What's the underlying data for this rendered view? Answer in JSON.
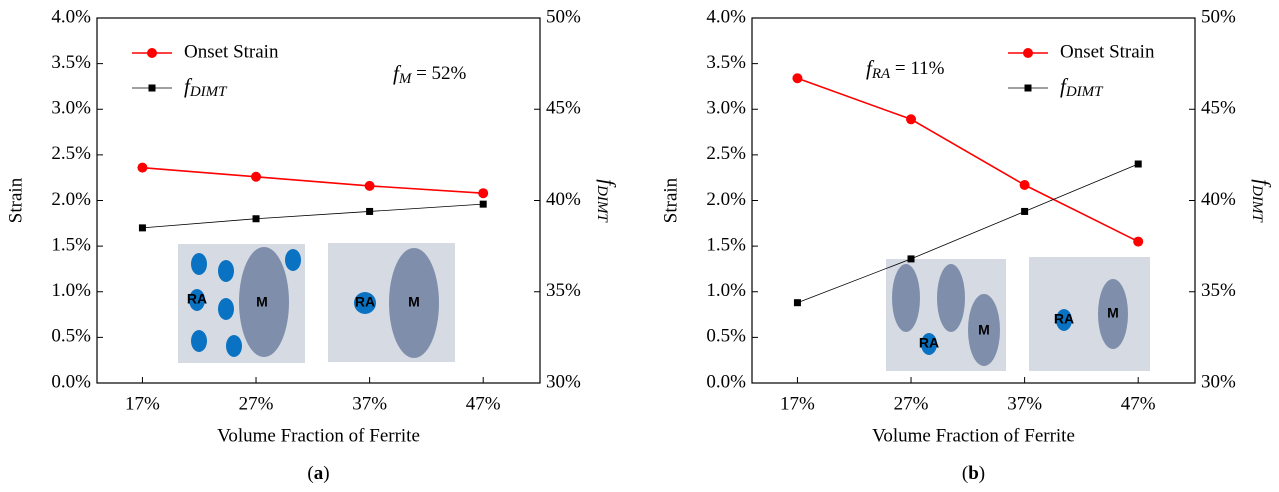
{
  "chart_data": [
    {
      "type": "line",
      "caption": "(a)",
      "xlabel": "Volume Fraction of Ferrite",
      "ylabel": "Strain",
      "y2label": "fDIMT",
      "annotation": "fM = 52%",
      "legend": "upper left",
      "categories": [
        "17%",
        "27%",
        "37%",
        "47%"
      ],
      "series": [
        {
          "name": "Onset Strain",
          "color": "#ff0000",
          "marker": "circle",
          "values": [
            2.36,
            2.26,
            2.16,
            2.08
          ]
        },
        {
          "name": "fDIMT",
          "color": "#000000",
          "marker": "square",
          "axis": "y2",
          "values": [
            38.5,
            39.0,
            39.4,
            39.8
          ]
        }
      ],
      "ylim": [
        0,
        4
      ],
      "yticks": [
        {
          "value": 0,
          "label": "0.0%"
        },
        {
          "value": 0.5,
          "label": "0.5%"
        },
        {
          "value": 1,
          "label": "1.0%"
        },
        {
          "value": 1.5,
          "label": "1.5%"
        },
        {
          "value": 2,
          "label": "2.0%"
        },
        {
          "value": 2.5,
          "label": "2.5%"
        },
        {
          "value": 3,
          "label": "3.0%"
        },
        {
          "value": 3.5,
          "label": "3.5%"
        },
        {
          "value": 4,
          "label": "4.0%"
        }
      ],
      "y2lim": [
        30,
        50
      ],
      "y2ticks": [
        {
          "value": 30,
          "label": "30%"
        },
        {
          "value": 35,
          "label": "35%"
        },
        {
          "value": 40,
          "label": "40%"
        },
        {
          "value": 45,
          "label": "45%"
        },
        {
          "value": 50,
          "label": "50%"
        }
      ],
      "insets": [
        {
          "labels": [
            "RA",
            "M"
          ]
        },
        {
          "labels": [
            "RA",
            "M"
          ]
        }
      ]
    },
    {
      "type": "line",
      "caption": "(b)",
      "xlabel": "Volume Fraction of Ferrite",
      "ylabel": "Strain",
      "y2label": "fDIMT",
      "annotation": "fRA = 11%",
      "legend": "upper right",
      "categories": [
        "17%",
        "27%",
        "37%",
        "47%"
      ],
      "series": [
        {
          "name": "Onset Strain",
          "color": "#ff0000",
          "marker": "circle",
          "values": [
            3.34,
            2.89,
            2.17,
            1.55
          ]
        },
        {
          "name": "fDIMT",
          "color": "#000000",
          "marker": "square",
          "axis": "y2",
          "values": [
            34.4,
            36.8,
            39.4,
            42.0
          ]
        }
      ],
      "ylim": [
        0,
        4
      ],
      "yticks": [
        {
          "value": 0,
          "label": "0.0%"
        },
        {
          "value": 0.5,
          "label": "0.5%"
        },
        {
          "value": 1,
          "label": "1.0%"
        },
        {
          "value": 1.5,
          "label": "1.5%"
        },
        {
          "value": 2,
          "label": "2.0%"
        },
        {
          "value": 2.5,
          "label": "2.5%"
        },
        {
          "value": 3,
          "label": "3.0%"
        },
        {
          "value": 3.5,
          "label": "3.5%"
        },
        {
          "value": 4,
          "label": "4.0%"
        }
      ],
      "y2lim": [
        30,
        50
      ],
      "y2ticks": [
        {
          "value": 30,
          "label": "30%"
        },
        {
          "value": 35,
          "label": "35%"
        },
        {
          "value": 40,
          "label": "40%"
        },
        {
          "value": 45,
          "label": "45%"
        },
        {
          "value": 50,
          "label": "50%"
        }
      ],
      "insets": [
        {
          "labels": [
            "RA",
            "M"
          ]
        },
        {
          "labels": [
            "RA",
            "M"
          ]
        }
      ]
    }
  ]
}
